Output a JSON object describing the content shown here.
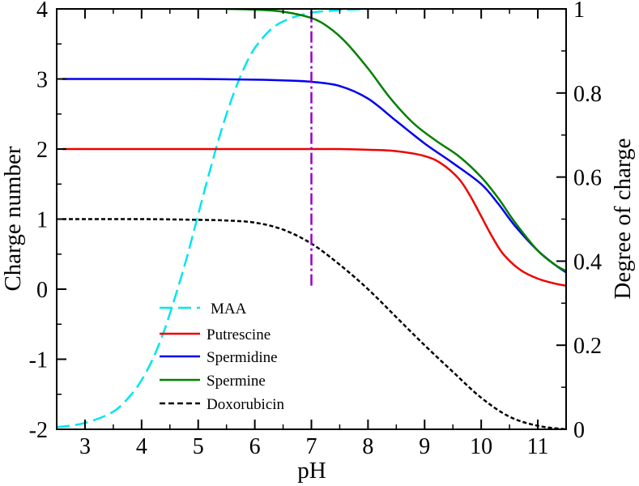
{
  "chart_data": {
    "type": "line",
    "xlabel": "pH",
    "ylabel_left": "Charge number",
    "ylabel_right": "Degree of charge",
    "xlim": [
      2.5,
      11.5
    ],
    "ylim_left": [
      -2,
      4
    ],
    "ylim_right": [
      0,
      1
    ],
    "x_ticks": [
      3,
      4,
      5,
      6,
      7,
      8,
      9,
      10,
      11
    ],
    "y_ticks_left": [
      -2,
      -1,
      0,
      1,
      2,
      3,
      4
    ],
    "y_ticks_right": [
      "0",
      "0.2",
      "0.4",
      "0.6",
      "0.8",
      "1"
    ],
    "y_tick_values_right": [
      0,
      0.2,
      0.4,
      0.6,
      0.8,
      1
    ],
    "grid": false,
    "legend_position": "bottom-left",
    "annotations": [
      {
        "type": "vertical-line",
        "x": 7,
        "y_range": [
          0.05,
          4
        ],
        "style": "dash-dot",
        "color": "#9a00c8"
      }
    ],
    "series": [
      {
        "name": "MAA",
        "axis": "right",
        "color": "#00e5ee",
        "style": "dashed",
        "x": [
          2.5,
          3.0,
          3.5,
          3.8,
          4.0,
          4.2,
          4.4,
          4.6,
          4.8,
          5.0,
          5.2,
          5.4,
          5.6,
          5.8,
          6.0,
          6.3,
          6.6,
          7.0,
          7.5,
          8.0
        ],
        "y": [
          0.005,
          0.015,
          0.042,
          0.08,
          0.117,
          0.168,
          0.235,
          0.318,
          0.409,
          0.511,
          0.612,
          0.707,
          0.789,
          0.856,
          0.907,
          0.953,
          0.976,
          0.991,
          0.997,
          1.0
        ]
      },
      {
        "name": "Putrescine",
        "axis": "left",
        "color": "#ee0000",
        "style": "solid",
        "x": [
          2.6,
          4.0,
          5.0,
          6.0,
          7.0,
          7.5,
          8.0,
          8.5,
          9.0,
          9.3,
          9.6,
          9.8,
          10.0,
          10.2,
          10.4,
          10.7,
          11.0,
          11.3,
          11.5
        ],
        "y": [
          2.0,
          2.0,
          2.0,
          2.0,
          2.0,
          2.0,
          1.99,
          1.97,
          1.9,
          1.79,
          1.58,
          1.34,
          1.04,
          0.74,
          0.49,
          0.27,
          0.15,
          0.08,
          0.05
        ]
      },
      {
        "name": "Spermidine",
        "axis": "left",
        "color": "#0000ee",
        "style": "solid",
        "x": [
          2.6,
          4.0,
          5.0,
          6.0,
          6.5,
          7.0,
          7.5,
          8.0,
          8.5,
          9.0,
          9.5,
          10.0,
          10.3,
          10.6,
          11.0,
          11.3,
          11.5
        ],
        "y": [
          3.0,
          3.0,
          3.0,
          2.99,
          2.98,
          2.96,
          2.9,
          2.72,
          2.4,
          2.08,
          1.8,
          1.5,
          1.22,
          0.9,
          0.55,
          0.35,
          0.24
        ]
      },
      {
        "name": "Spermine",
        "axis": "left",
        "color": "#008000",
        "style": "solid",
        "x": [
          5.5,
          6.0,
          6.5,
          7.0,
          7.3,
          7.6,
          8.0,
          8.4,
          8.8,
          9.2,
          9.6,
          10.0,
          10.3,
          10.6,
          11.0,
          11.3,
          11.5
        ],
        "y": [
          4.0,
          3.99,
          3.96,
          3.87,
          3.74,
          3.53,
          3.15,
          2.72,
          2.37,
          2.12,
          1.9,
          1.6,
          1.3,
          0.95,
          0.55,
          0.35,
          0.26
        ]
      },
      {
        "name": "Doxorubicin",
        "axis": "left",
        "color": "#000000",
        "style": "dashed",
        "x": [
          2.6,
          4.0,
          5.0,
          5.5,
          6.0,
          6.5,
          7.0,
          7.5,
          8.0,
          8.5,
          9.0,
          9.5,
          10.0,
          10.5,
          11.0,
          11.5
        ],
        "y": [
          1.0,
          1.0,
          0.99,
          0.98,
          0.95,
          0.85,
          0.65,
          0.35,
          0.0,
          -0.4,
          -0.8,
          -1.18,
          -1.55,
          -1.82,
          -1.95,
          -2.0
        ]
      }
    ]
  }
}
